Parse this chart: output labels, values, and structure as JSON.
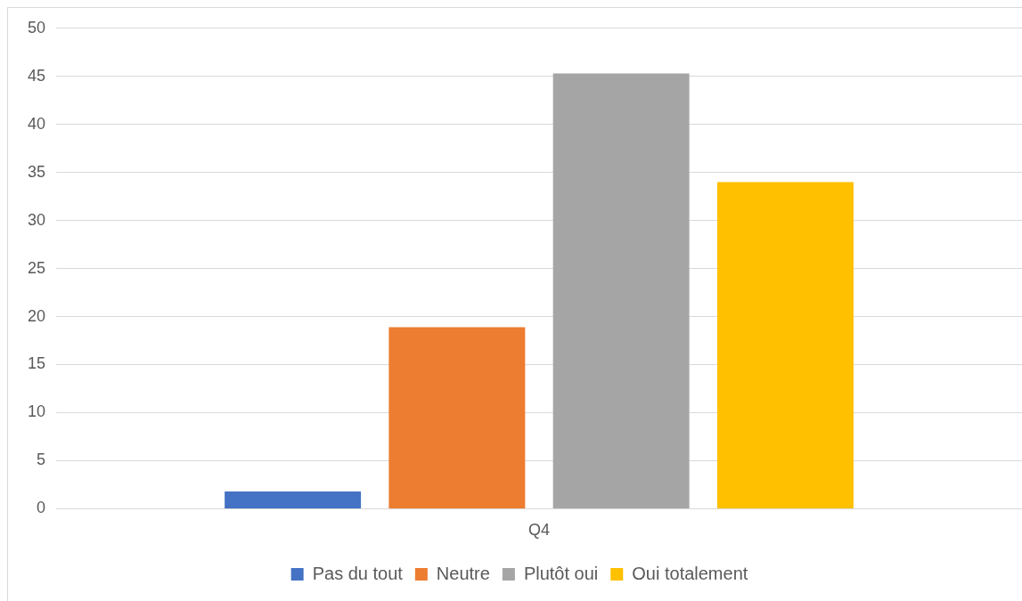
{
  "chart_data": {
    "type": "bar",
    "categories": [
      "Q4"
    ],
    "series": [
      {
        "name": "Pas du tout",
        "color": "#4472c4",
        "values": [
          1.8
        ]
      },
      {
        "name": "Neutre",
        "color": "#ed7d31",
        "values": [
          18.9
        ]
      },
      {
        "name": "Plutôt oui",
        "color": "#a5a5a5",
        "values": [
          45.3
        ]
      },
      {
        "name": "Oui totalement",
        "color": "#ffc000",
        "values": [
          34
        ]
      }
    ],
    "ylim": [
      0,
      50
    ],
    "yticks": [
      0,
      5,
      10,
      15,
      20,
      25,
      30,
      35,
      40,
      45,
      50
    ],
    "grid": "y",
    "legend": "bottom"
  }
}
